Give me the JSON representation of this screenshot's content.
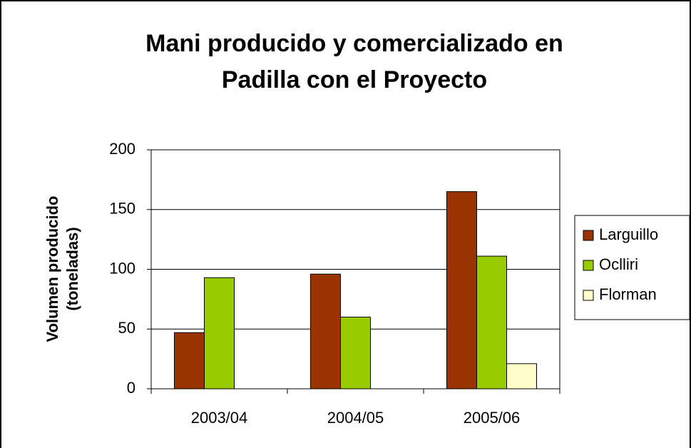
{
  "chart_data": {
    "type": "bar",
    "title": [
      "Mani producido y comercializado en",
      "Padilla con el Proyecto"
    ],
    "y_label": [
      "Volumen producido",
      "(toneladas)"
    ],
    "categories": [
      "2003/04",
      "2004/05",
      "2005/06"
    ],
    "series": [
      {
        "name": "Larguillo",
        "color": "#993300",
        "values": [
          47,
          96,
          165
        ]
      },
      {
        "name": "Oclliri",
        "color": "#99cc00",
        "values": [
          93,
          60,
          111
        ]
      },
      {
        "name": "Florman",
        "color": "#ffffcc",
        "values": [
          0,
          0,
          21
        ]
      }
    ],
    "ylim": [
      0,
      200
    ],
    "yticks": [
      0,
      50,
      100,
      150,
      200
    ],
    "grid": true,
    "legend": "right"
  }
}
